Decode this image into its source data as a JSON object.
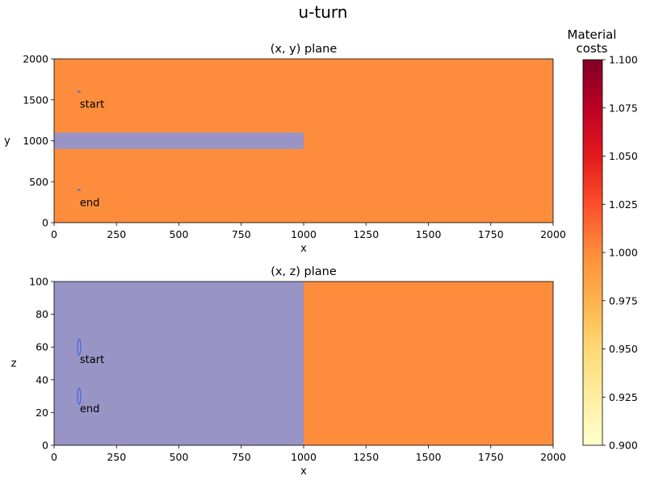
{
  "figure": {
    "title": "u-turn"
  },
  "chart_data": [
    {
      "type": "heatmap",
      "title": "(x, y) plane",
      "xlabel": "x",
      "ylabel": "y",
      "xlim": [
        0,
        2000
      ],
      "ylim": [
        0,
        2000
      ],
      "xticks": [
        "0",
        "250",
        "500",
        "750",
        "1000",
        "1250",
        "1500",
        "1750",
        "2000"
      ],
      "yticks": [
        "0",
        "500",
        "1000",
        "1500",
        "2000"
      ],
      "background": {
        "value": 1.0,
        "color": "#fd8d3c"
      },
      "regions": [
        {
          "name": "",
          "x": [
            0,
            1000
          ],
          "y": [
            900,
            1100
          ],
          "color": "#9894c6"
        }
      ],
      "markers": [
        {
          "label": "start",
          "x": 100,
          "y": 1600
        },
        {
          "label": "end",
          "x": 100,
          "y": 400
        }
      ],
      "marker_color": "#4169e1"
    },
    {
      "type": "heatmap",
      "title": "(x, z) plane",
      "xlabel": "x",
      "ylabel": "z",
      "xlim": [
        0,
        2000
      ],
      "ylim": [
        0,
        100
      ],
      "xticks": [
        "0",
        "250",
        "500",
        "750",
        "1000",
        "1250",
        "1500",
        "1750",
        "2000"
      ],
      "yticks": [
        "0",
        "20",
        "40",
        "60",
        "80",
        "100"
      ],
      "background": {
        "value": 1.0,
        "color": "#fd8d3c"
      },
      "regions": [
        {
          "name": "",
          "x": [
            0,
            1000
          ],
          "y": [
            0,
            100
          ],
          "color": "#9894c6"
        }
      ],
      "markers": [
        {
          "label": "start",
          "x": 100,
          "y": 60
        },
        {
          "label": "end",
          "x": 100,
          "y": 30
        }
      ],
      "marker_color": "#4169e1"
    }
  ],
  "colorbar": {
    "title_line1": "Material",
    "title_line2": "costs",
    "range": [
      0.9,
      1.1
    ],
    "colormap": [
      "#ffffcc",
      "#ffeda0",
      "#fed976",
      "#feb24c",
      "#fd8d3c",
      "#fc4e2a",
      "#e31a1c",
      "#bd0026",
      "#800026"
    ],
    "ticks": [
      "0.900",
      "0.925",
      "0.950",
      "0.975",
      "1.000",
      "1.025",
      "1.050",
      "1.075",
      "1.100"
    ]
  }
}
